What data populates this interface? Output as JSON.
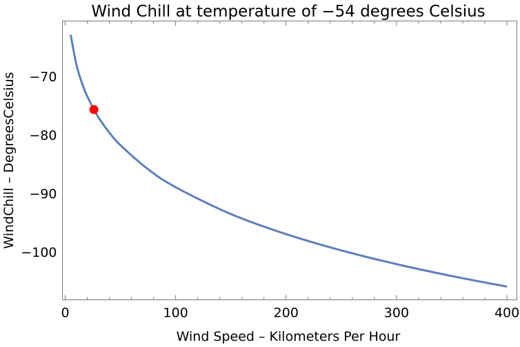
{
  "chart_data": {
    "type": "line",
    "title": "Wind Chill at temperature of −54 degrees Celsius",
    "xlabel": "Wind Speed – Kilometers Per Hour",
    "ylabel": "WindChill – DegreesCelsius",
    "xlim": [
      -2.5,
      409
    ],
    "ylim": [
      -108.2,
      -60.5
    ],
    "xticks": [
      0,
      100,
      200,
      300,
      400
    ],
    "yticks": [
      -70,
      -80,
      -90,
      -100
    ],
    "xtick_labels": [
      "0",
      "100",
      "200",
      "300",
      "400"
    ],
    "ytick_labels": [
      "−70",
      "−80",
      "−90",
      "−100"
    ],
    "grid": false,
    "series": [
      {
        "x": [
          5,
          10,
          15,
          20,
          30,
          40,
          50,
          75,
          100,
          150,
          200,
          250,
          300,
          350,
          400
        ],
        "y": [
          -62.85,
          -67.82,
          -71.0,
          -73.38,
          -76.93,
          -79.59,
          -81.74,
          -85.85,
          -88.93,
          -93.52,
          -96.96,
          -99.74,
          -102.09,
          -104.13,
          -105.94
        ],
        "color": "#5b7fbb"
      }
    ],
    "highlight_point": {
      "x": 26,
      "y": -75.65,
      "color": "#ff0000"
    }
  }
}
